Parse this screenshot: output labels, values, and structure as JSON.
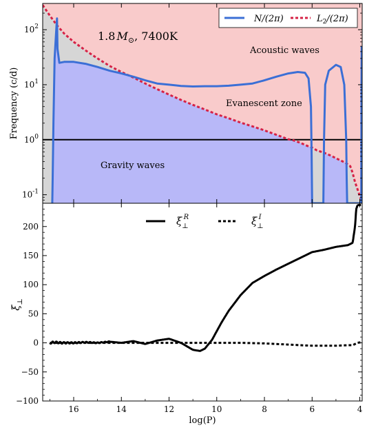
{
  "chart_data": [
    {
      "type": "line",
      "panel": "top",
      "ylabel": "Frequency (c/d)",
      "yscale": "log",
      "ylim": [
        0.07,
        300
      ],
      "xlim": [
        17.3,
        3.9
      ],
      "x_reversed": true,
      "yticks": [
        0.1,
        1,
        10,
        100
      ],
      "ytick_labels": [
        "10",
        "10",
        "10",
        "10"
      ],
      "ytick_exponents": [
        "-1",
        "0",
        "1",
        "2"
      ],
      "star_label_main": "1.8",
      "star_label_symbol": "M",
      "star_label_sub": "⊙",
      "star_label_rest": ", 7400K",
      "regions": {
        "acoustic": "Acoustic waves",
        "evanescent": "Evanescent zone",
        "gravity": "Gravity waves"
      },
      "colors": {
        "acoustic": "#f9cbcb",
        "evanescent": "#d6d6d6",
        "gravity": "#b8b8f8",
        "N_line": "#3b6fd6",
        "L2_line": "#d62246",
        "ref_line": "#000000"
      },
      "horizontal_line": 1,
      "legend_position": "top-right",
      "series": [
        {
          "name": "N/(2π)",
          "legend_text": "N/(2π)",
          "style": "solid",
          "x": [
            16.9,
            16.88,
            16.85,
            16.8,
            16.75,
            16.72,
            16.7,
            16.68,
            16.6,
            16.4,
            16.0,
            15.5,
            15.0,
            14.5,
            14.0,
            13.5,
            13.0,
            12.5,
            12.0,
            11.5,
            11.0,
            10.5,
            10.0,
            9.5,
            9.0,
            8.5,
            8.0,
            7.5,
            7.0,
            6.6,
            6.3,
            6.15,
            6.05,
            6.02,
            6.0,
            5.53,
            5.5,
            5.45,
            5.3,
            5.0,
            4.8,
            4.65,
            4.57,
            4.55,
            4.53,
            3.94,
            3.93,
            3.92
          ],
          "y": [
            0.07,
            0.2,
            2,
            30,
            70,
            120,
            160,
            45,
            25,
            26,
            26,
            24,
            21,
            18,
            16,
            14,
            12,
            10.5,
            10,
            9.5,
            9.3,
            9.4,
            9.4,
            9.6,
            10,
            10.5,
            12,
            14,
            16,
            17,
            16.5,
            13,
            4,
            0.5,
            0.07,
            0.07,
            1,
            10,
            18,
            23,
            21,
            10,
            1,
            0.2,
            0.07,
            0.07,
            10,
            50
          ]
        },
        {
          "name": "L2/(2π)",
          "legend_text": "L",
          "legend_sub": "2",
          "legend_rest": "/(2π)",
          "style": "dashed",
          "x": [
            17.3,
            17.0,
            16.7,
            16.4,
            16.0,
            15.5,
            15.0,
            14.5,
            14.0,
            13.5,
            13.0,
            12.5,
            12.0,
            11.5,
            11.0,
            10.5,
            10.0,
            9.5,
            9.0,
            8.5,
            8.0,
            7.5,
            7.2,
            7.0,
            6.8,
            6.5,
            6.2,
            6.0,
            5.8,
            5.5,
            5.2,
            5.0,
            4.8,
            4.6,
            4.4,
            4.3,
            4.2,
            4.05,
            3.9
          ],
          "y": [
            280,
            180,
            120,
            85,
            60,
            42,
            30,
            22,
            17,
            13.5,
            10.5,
            8.3,
            6.6,
            5.3,
            4.3,
            3.55,
            2.9,
            2.45,
            2.05,
            1.75,
            1.48,
            1.23,
            1.1,
            1.02,
            0.98,
            0.88,
            0.77,
            0.72,
            0.64,
            0.58,
            0.51,
            0.46,
            0.42,
            0.38,
            0.33,
            0.25,
            0.17,
            0.11,
            0.07
          ]
        }
      ]
    },
    {
      "type": "line",
      "panel": "bottom",
      "ylabel": "ξ",
      "ylabel_sub": "⊥",
      "xlabel": "log(P)",
      "xlim": [
        17.3,
        3.9
      ],
      "x_reversed": true,
      "ylim": [
        -100,
        240
      ],
      "yticks": [
        -100,
        -50,
        0,
        50,
        100,
        150,
        200
      ],
      "xticks": [
        16,
        14,
        12,
        10,
        8,
        6,
        4
      ],
      "legend_position": "top-center",
      "series": [
        {
          "name": "ξ⊥R",
          "legend_text": "ξ",
          "legend_sub": "⊥",
          "legend_sup": "R",
          "style": "solid",
          "x": [
            17.0,
            16.8,
            16.5,
            16.0,
            15.5,
            15.0,
            14.5,
            14.0,
            13.5,
            13.0,
            12.5,
            12.0,
            11.5,
            11.0,
            10.7,
            10.5,
            10.2,
            10.0,
            9.8,
            9.5,
            9.0,
            8.5,
            8.0,
            7.5,
            7.0,
            6.5,
            6.0,
            5.5,
            5.0,
            4.5,
            4.3,
            4.2,
            4.15,
            4.1,
            4.05,
            3.95
          ],
          "y": [
            0,
            1,
            0,
            0,
            1,
            0,
            2,
            0,
            3,
            -2,
            4,
            7,
            0,
            -12,
            -14,
            -10,
            5,
            20,
            35,
            55,
            82,
            103,
            115,
            126,
            136,
            146,
            156,
            160,
            165,
            168,
            172,
            200,
            230,
            236,
            237,
            237
          ]
        },
        {
          "name": "ξ⊥I",
          "legend_text": "ξ",
          "legend_sub": "⊥",
          "legend_sup": "I",
          "style": "dashed",
          "x": [
            17.0,
            16.0,
            14.0,
            12.0,
            10.0,
            9.0,
            8.0,
            7.0,
            6.5,
            6.0,
            5.5,
            5.0,
            4.5,
            4.3,
            4.1,
            3.95
          ],
          "y": [
            0,
            0,
            0,
            0,
            0,
            0,
            -1,
            -3,
            -4,
            -5,
            -5,
            -5,
            -4,
            -4,
            0,
            1
          ]
        }
      ]
    }
  ]
}
